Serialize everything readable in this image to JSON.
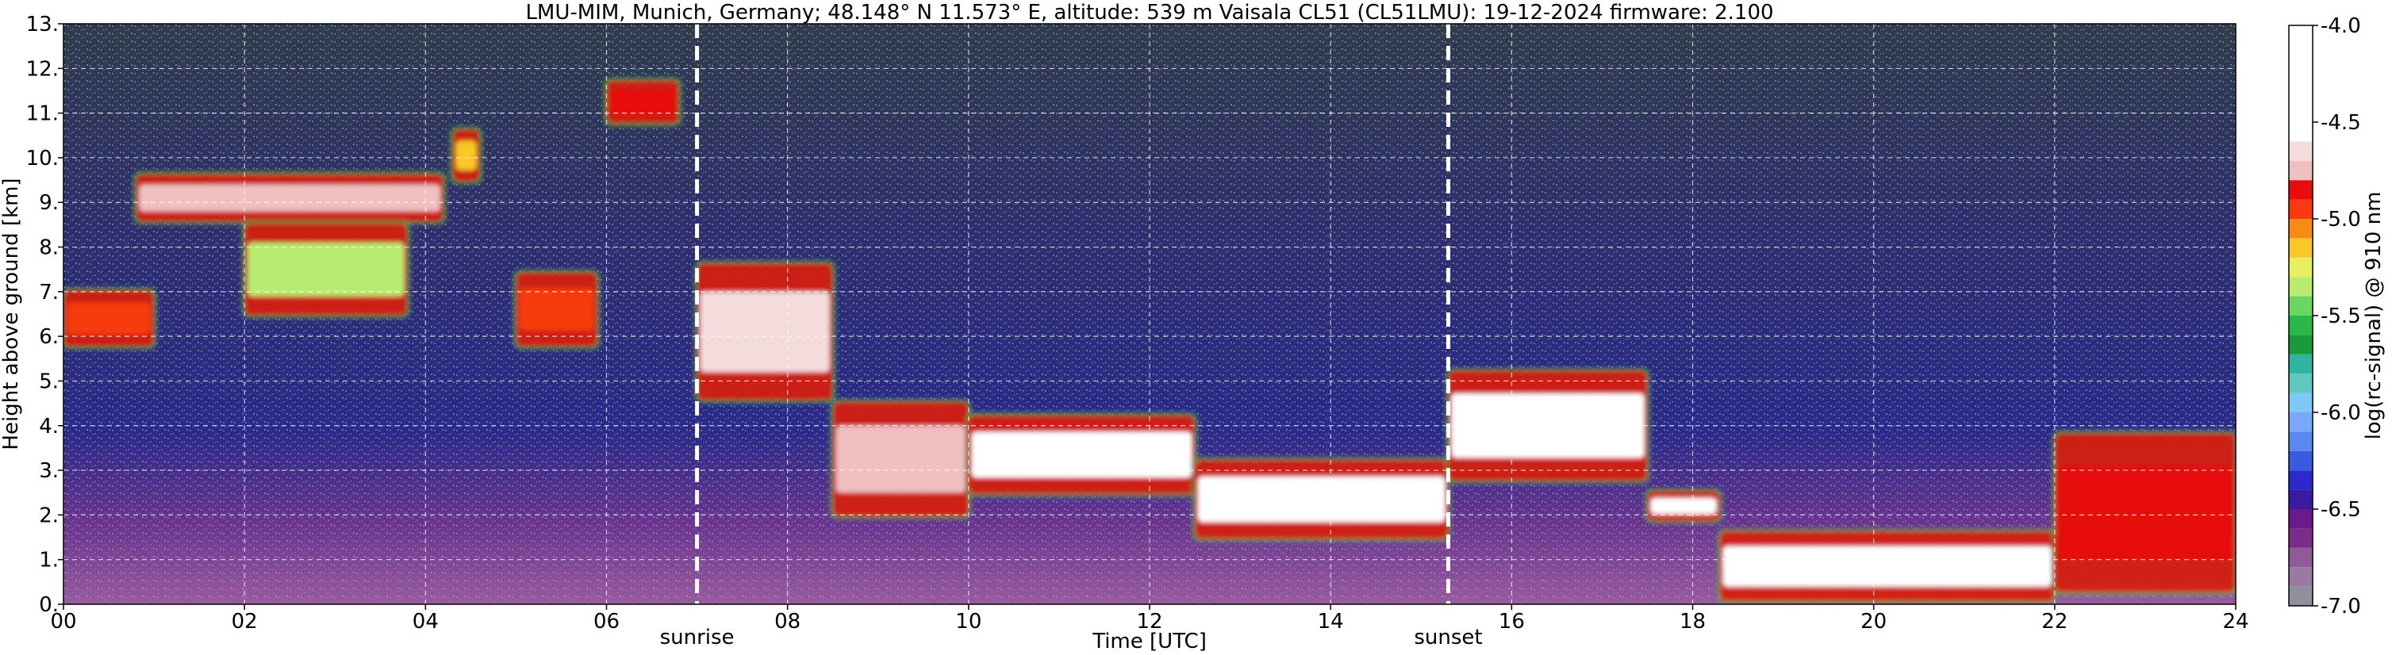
{
  "chart_data": {
    "type": "heatmap",
    "title": "LMU-MIM, Munich, Germany; 48.148° N 11.573° E, altitude: 539 m    Vaisala CL51 (CL51LMU): 19-12-2024    firmware: 2.100",
    "xlabel": "Time [UTC]",
    "ylabel": "Height above ground [km]",
    "colorbar_label": "log(rc-signal) @ 910 nm",
    "xlim": [
      0,
      24
    ],
    "ylim": [
      0,
      13
    ],
    "clim": [
      -7.0,
      -4.0
    ],
    "grid": true,
    "x_ticks": [
      {
        "v": 0,
        "label": "00"
      },
      {
        "v": 2,
        "label": "02"
      },
      {
        "v": 4,
        "label": "04"
      },
      {
        "v": 6,
        "label": "06"
      },
      {
        "v": 8,
        "label": "08"
      },
      {
        "v": 10,
        "label": "10"
      },
      {
        "v": 12,
        "label": "12"
      },
      {
        "v": 14,
        "label": "14"
      },
      {
        "v": 16,
        "label": "16"
      },
      {
        "v": 18,
        "label": "18"
      },
      {
        "v": 20,
        "label": "20"
      },
      {
        "v": 22,
        "label": "22"
      },
      {
        "v": 24,
        "label": "24"
      }
    ],
    "y_ticks": [
      {
        "v": 0,
        "label": "0."
      },
      {
        "v": 1,
        "label": "1."
      },
      {
        "v": 2,
        "label": "2."
      },
      {
        "v": 3,
        "label": "3."
      },
      {
        "v": 4,
        "label": "4."
      },
      {
        "v": 5,
        "label": "5."
      },
      {
        "v": 6,
        "label": "6."
      },
      {
        "v": 7,
        "label": "7."
      },
      {
        "v": 8,
        "label": "8."
      },
      {
        "v": 9,
        "label": "9."
      },
      {
        "v": 10,
        "label": "10."
      },
      {
        "v": 11,
        "label": "11."
      },
      {
        "v": 12,
        "label": "12."
      },
      {
        "v": 13,
        "label": "13."
      }
    ],
    "colorbar_ticks": [
      {
        "v": -4.0,
        "label": "-4.0"
      },
      {
        "v": -4.5,
        "label": "-4.5"
      },
      {
        "v": -5.0,
        "label": "-5.0"
      },
      {
        "v": -5.5,
        "label": "-5.5"
      },
      {
        "v": -6.0,
        "label": "-6.0"
      },
      {
        "v": -6.5,
        "label": "-6.5"
      },
      {
        "v": -7.0,
        "label": "-7.0"
      }
    ],
    "colorbar_levels": [
      {
        "from": -7.0,
        "to": -6.9,
        "color": "#8f8f9d"
      },
      {
        "from": -6.9,
        "to": -6.8,
        "color": "#9a7aa0"
      },
      {
        "from": -6.8,
        "to": -6.7,
        "color": "#8e5a98"
      },
      {
        "from": -6.7,
        "to": -6.6,
        "color": "#7a2c8c"
      },
      {
        "from": -6.6,
        "to": -6.5,
        "color": "#6a1a8a"
      },
      {
        "from": -6.5,
        "to": -6.4,
        "color": "#3a1aa0"
      },
      {
        "from": -6.4,
        "to": -6.3,
        "color": "#2a2acc"
      },
      {
        "from": -6.3,
        "to": -6.2,
        "color": "#3a5ae0"
      },
      {
        "from": -6.2,
        "to": -6.1,
        "color": "#5a88f0"
      },
      {
        "from": -6.1,
        "to": -6.0,
        "color": "#7aa8f8"
      },
      {
        "from": -6.0,
        "to": -5.9,
        "color": "#7ec8f8"
      },
      {
        "from": -5.9,
        "to": -5.8,
        "color": "#60c8c0"
      },
      {
        "from": -5.8,
        "to": -5.7,
        "color": "#30b4a0"
      },
      {
        "from": -5.7,
        "to": -5.6,
        "color": "#1a9a3a"
      },
      {
        "from": -5.6,
        "to": -5.5,
        "color": "#2ab84a"
      },
      {
        "from": -5.5,
        "to": -5.4,
        "color": "#6ad860"
      },
      {
        "from": -5.4,
        "to": -5.3,
        "color": "#b8ec70"
      },
      {
        "from": -5.3,
        "to": -5.2,
        "color": "#e8f060"
      },
      {
        "from": -5.2,
        "to": -5.1,
        "color": "#f8c828"
      },
      {
        "from": -5.1,
        "to": -5.0,
        "color": "#f88a18"
      },
      {
        "from": -5.0,
        "to": -4.9,
        "color": "#f83a10"
      },
      {
        "from": -4.9,
        "to": -4.8,
        "color": "#e80c0c"
      },
      {
        "from": -4.8,
        "to": -4.7,
        "color": "#f0c0c0"
      },
      {
        "from": -4.7,
        "to": -4.6,
        "color": "#f4dcdc"
      },
      {
        "from": -4.6,
        "to": -4.0,
        "color": "#ffffff"
      }
    ],
    "events": [
      {
        "time": 7.0,
        "label": "sunrise"
      },
      {
        "time": 15.3,
        "label": "sunset"
      }
    ],
    "cloud_layers": [
      {
        "start": 0.0,
        "end": 1.0,
        "base": 5.8,
        "top": 7.0,
        "value": -5.0
      },
      {
        "start": 0.8,
        "end": 4.2,
        "base": 8.6,
        "top": 9.6,
        "value": -4.8
      },
      {
        "start": 2.0,
        "end": 3.8,
        "base": 6.5,
        "top": 8.5,
        "value": -5.4
      },
      {
        "start": 4.3,
        "end": 4.6,
        "base": 9.5,
        "top": 10.6,
        "value": -5.2
      },
      {
        "start": 5.0,
        "end": 5.9,
        "base": 5.8,
        "top": 7.4,
        "value": -5.0
      },
      {
        "start": 6.0,
        "end": 6.8,
        "base": 10.8,
        "top": 11.7,
        "value": -4.9
      },
      {
        "start": 7.0,
        "end": 8.5,
        "base": 4.6,
        "top": 7.6,
        "value": -4.7
      },
      {
        "start": 8.5,
        "end": 10.0,
        "base": 2.0,
        "top": 4.5,
        "value": -4.8
      },
      {
        "start": 10.0,
        "end": 12.5,
        "base": 2.5,
        "top": 4.2,
        "value": -4.5
      },
      {
        "start": 12.5,
        "end": 15.3,
        "base": 1.5,
        "top": 3.2,
        "value": -4.5
      },
      {
        "start": 15.3,
        "end": 17.5,
        "base": 2.8,
        "top": 5.2,
        "value": -4.6
      },
      {
        "start": 17.5,
        "end": 18.3,
        "base": 1.9,
        "top": 2.5,
        "value": -4.6
      },
      {
        "start": 18.3,
        "end": 22.0,
        "base": 0.1,
        "top": 1.6,
        "value": -4.3
      },
      {
        "start": 22.0,
        "end": 24.0,
        "base": 0.3,
        "top": 3.8,
        "value": -4.9
      }
    ]
  }
}
